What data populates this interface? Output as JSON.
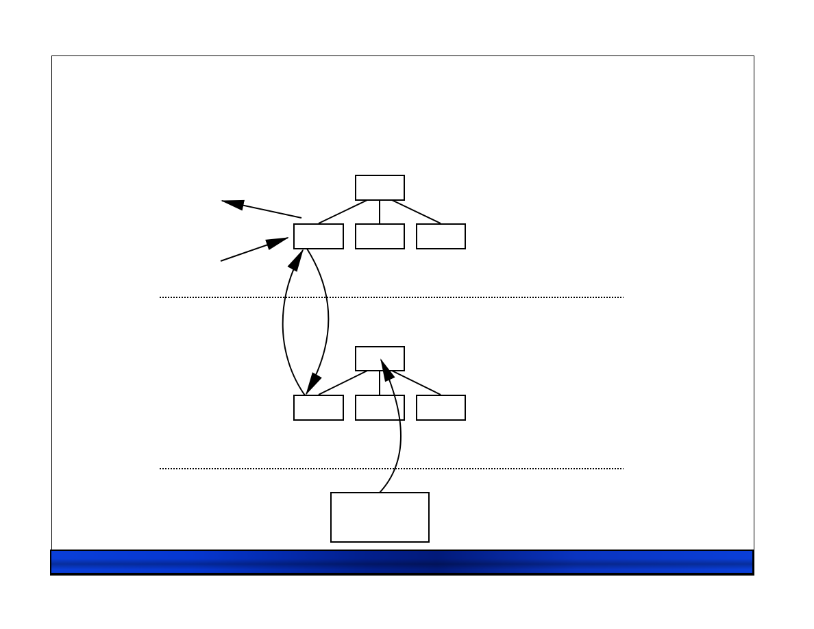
{
  "colors": {
    "frame_border": "#000000",
    "footer_bar": "#0a3fd8",
    "footer_bar_dark": "#021a7a",
    "stroke": "#000000",
    "box_fill": "#ffffff"
  },
  "diagram": {
    "upper_tree": {
      "root": "",
      "children": [
        "",
        "",
        ""
      ]
    },
    "lower_tree": {
      "root": "",
      "children": [
        "",
        "",
        ""
      ]
    },
    "bottom_box": "",
    "separators": 2,
    "arrows": 5
  }
}
